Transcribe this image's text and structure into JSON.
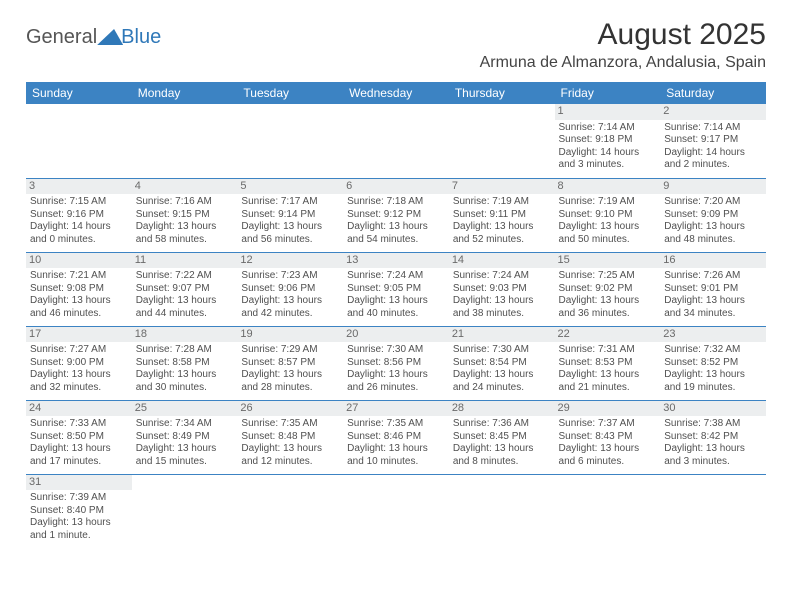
{
  "logo": {
    "text_dark": "General",
    "text_blue": "Blue"
  },
  "header": {
    "title": "August 2025",
    "location": "Armuna de Almanzora, Andalusia, Spain"
  },
  "theme": {
    "header_bg": "#3c83c3",
    "header_fg": "#ffffff",
    "daynum_bg": "#eceeef",
    "divider": "#3c83c3",
    "text": "#505050"
  },
  "weekdays": [
    "Sunday",
    "Monday",
    "Tuesday",
    "Wednesday",
    "Thursday",
    "Friday",
    "Saturday"
  ],
  "weeks": [
    [
      null,
      null,
      null,
      null,
      null,
      {
        "n": 1,
        "sunrise": "7:14 AM",
        "sunset": "9:18 PM",
        "daylight": "14 hours and 3 minutes."
      },
      {
        "n": 2,
        "sunrise": "7:14 AM",
        "sunset": "9:17 PM",
        "daylight": "14 hours and 2 minutes."
      }
    ],
    [
      {
        "n": 3,
        "sunrise": "7:15 AM",
        "sunset": "9:16 PM",
        "daylight": "14 hours and 0 minutes."
      },
      {
        "n": 4,
        "sunrise": "7:16 AM",
        "sunset": "9:15 PM",
        "daylight": "13 hours and 58 minutes."
      },
      {
        "n": 5,
        "sunrise": "7:17 AM",
        "sunset": "9:14 PM",
        "daylight": "13 hours and 56 minutes."
      },
      {
        "n": 6,
        "sunrise": "7:18 AM",
        "sunset": "9:12 PM",
        "daylight": "13 hours and 54 minutes."
      },
      {
        "n": 7,
        "sunrise": "7:19 AM",
        "sunset": "9:11 PM",
        "daylight": "13 hours and 52 minutes."
      },
      {
        "n": 8,
        "sunrise": "7:19 AM",
        "sunset": "9:10 PM",
        "daylight": "13 hours and 50 minutes."
      },
      {
        "n": 9,
        "sunrise": "7:20 AM",
        "sunset": "9:09 PM",
        "daylight": "13 hours and 48 minutes."
      }
    ],
    [
      {
        "n": 10,
        "sunrise": "7:21 AM",
        "sunset": "9:08 PM",
        "daylight": "13 hours and 46 minutes."
      },
      {
        "n": 11,
        "sunrise": "7:22 AM",
        "sunset": "9:07 PM",
        "daylight": "13 hours and 44 minutes."
      },
      {
        "n": 12,
        "sunrise": "7:23 AM",
        "sunset": "9:06 PM",
        "daylight": "13 hours and 42 minutes."
      },
      {
        "n": 13,
        "sunrise": "7:24 AM",
        "sunset": "9:05 PM",
        "daylight": "13 hours and 40 minutes."
      },
      {
        "n": 14,
        "sunrise": "7:24 AM",
        "sunset": "9:03 PM",
        "daylight": "13 hours and 38 minutes."
      },
      {
        "n": 15,
        "sunrise": "7:25 AM",
        "sunset": "9:02 PM",
        "daylight": "13 hours and 36 minutes."
      },
      {
        "n": 16,
        "sunrise": "7:26 AM",
        "sunset": "9:01 PM",
        "daylight": "13 hours and 34 minutes."
      }
    ],
    [
      {
        "n": 17,
        "sunrise": "7:27 AM",
        "sunset": "9:00 PM",
        "daylight": "13 hours and 32 minutes."
      },
      {
        "n": 18,
        "sunrise": "7:28 AM",
        "sunset": "8:58 PM",
        "daylight": "13 hours and 30 minutes."
      },
      {
        "n": 19,
        "sunrise": "7:29 AM",
        "sunset": "8:57 PM",
        "daylight": "13 hours and 28 minutes."
      },
      {
        "n": 20,
        "sunrise": "7:30 AM",
        "sunset": "8:56 PM",
        "daylight": "13 hours and 26 minutes."
      },
      {
        "n": 21,
        "sunrise": "7:30 AM",
        "sunset": "8:54 PM",
        "daylight": "13 hours and 24 minutes."
      },
      {
        "n": 22,
        "sunrise": "7:31 AM",
        "sunset": "8:53 PM",
        "daylight": "13 hours and 21 minutes."
      },
      {
        "n": 23,
        "sunrise": "7:32 AM",
        "sunset": "8:52 PM",
        "daylight": "13 hours and 19 minutes."
      }
    ],
    [
      {
        "n": 24,
        "sunrise": "7:33 AM",
        "sunset": "8:50 PM",
        "daylight": "13 hours and 17 minutes."
      },
      {
        "n": 25,
        "sunrise": "7:34 AM",
        "sunset": "8:49 PM",
        "daylight": "13 hours and 15 minutes."
      },
      {
        "n": 26,
        "sunrise": "7:35 AM",
        "sunset": "8:48 PM",
        "daylight": "13 hours and 12 minutes."
      },
      {
        "n": 27,
        "sunrise": "7:35 AM",
        "sunset": "8:46 PM",
        "daylight": "13 hours and 10 minutes."
      },
      {
        "n": 28,
        "sunrise": "7:36 AM",
        "sunset": "8:45 PM",
        "daylight": "13 hours and 8 minutes."
      },
      {
        "n": 29,
        "sunrise": "7:37 AM",
        "sunset": "8:43 PM",
        "daylight": "13 hours and 6 minutes."
      },
      {
        "n": 30,
        "sunrise": "7:38 AM",
        "sunset": "8:42 PM",
        "daylight": "13 hours and 3 minutes."
      }
    ],
    [
      {
        "n": 31,
        "sunrise": "7:39 AM",
        "sunset": "8:40 PM",
        "daylight": "13 hours and 1 minute."
      },
      null,
      null,
      null,
      null,
      null,
      null
    ]
  ],
  "labels": {
    "sunrise_prefix": "Sunrise: ",
    "sunset_prefix": "Sunset: ",
    "daylight_prefix": "Daylight: "
  }
}
